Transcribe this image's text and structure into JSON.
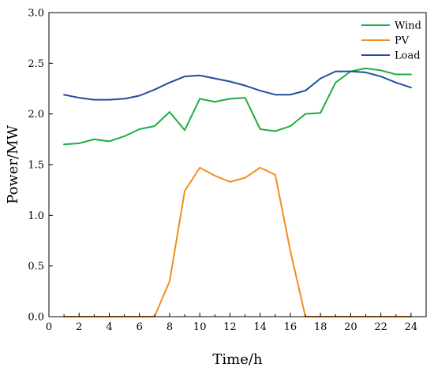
{
  "chart_data": {
    "type": "line",
    "title": "",
    "xlabel": "Time/h",
    "ylabel": "Power/MW",
    "xlim": [
      0,
      25
    ],
    "ylim": [
      0,
      3.0
    ],
    "xticks": [
      0,
      2,
      4,
      6,
      8,
      10,
      12,
      14,
      16,
      18,
      20,
      22,
      24
    ],
    "xtick_labels": [
      "0",
      "2",
      "4",
      "6",
      "8",
      "10",
      "12",
      "14",
      "16",
      "18",
      "20",
      "22",
      "24"
    ],
    "yticks": [
      0,
      0.5,
      1.0,
      1.5,
      2.0,
      2.5,
      3.0
    ],
    "ytick_labels": [
      "0.0",
      "0.5",
      "1.0",
      "1.5",
      "2.0",
      "2.5",
      "3.0"
    ],
    "grid": false,
    "legend_position": "top-right",
    "x": [
      1,
      2,
      3,
      4,
      5,
      6,
      7,
      8,
      9,
      10,
      11,
      12,
      13,
      14,
      15,
      16,
      17,
      18,
      19,
      20,
      21,
      22,
      23,
      24
    ],
    "series": [
      {
        "name": "Wind",
        "color": "#1fad3e",
        "values": [
          1.7,
          1.71,
          1.75,
          1.73,
          1.78,
          1.85,
          1.88,
          2.02,
          1.84,
          2.15,
          2.12,
          2.15,
          2.16,
          1.85,
          1.83,
          1.88,
          2.0,
          2.01,
          2.31,
          2.42,
          2.45,
          2.43,
          2.39,
          2.39
        ]
      },
      {
        "name": "PV",
        "color": "#f28e1c",
        "values": [
          0,
          0,
          0,
          0,
          0,
          0,
          0,
          0.35,
          1.24,
          1.47,
          1.39,
          1.33,
          1.37,
          1.47,
          1.4,
          0.65,
          0,
          0,
          0,
          0,
          0,
          0,
          0,
          0
        ]
      },
      {
        "name": "Load",
        "color": "#1f4e9b",
        "values": [
          2.19,
          2.16,
          2.14,
          2.14,
          2.15,
          2.18,
          2.24,
          2.31,
          2.37,
          2.38,
          2.35,
          2.32,
          2.28,
          2.23,
          2.19,
          2.19,
          2.23,
          2.35,
          2.42,
          2.42,
          2.41,
          2.37,
          2.31,
          2.26
        ]
      }
    ]
  }
}
